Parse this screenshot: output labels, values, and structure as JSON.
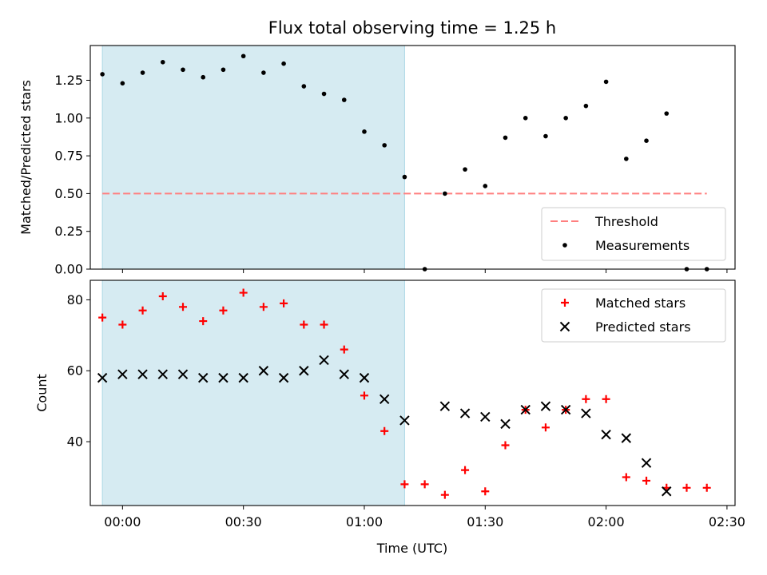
{
  "chart_data": {
    "type": "scatter",
    "title": "Flux total observing time = 1.25 h",
    "xlabel": "Time (UTC)",
    "x_unit": "time (UTC)",
    "xlim": [
      "23:52",
      "02:32"
    ],
    "xticks": [
      "00:00",
      "00:30",
      "01:00",
      "01:30",
      "02:00",
      "02:30"
    ],
    "shaded_span": [
      "23:55",
      "01:10"
    ],
    "colors": {
      "shade": "#add8e6",
      "threshold": "#ff7f7f",
      "measurements": "#000000",
      "matched": "#ff0000",
      "predicted": "#000000"
    },
    "panels": [
      {
        "ylabel": "Matched/Predicted stars",
        "ylim": [
          0,
          1.48
        ],
        "yticks": [
          "0.00",
          "0.25",
          "0.50",
          "0.75",
          "1.00",
          "1.25"
        ],
        "legend_position": "lower right",
        "series": [
          {
            "name": "Threshold",
            "style": "dashed-line",
            "points": [
              [
                "23:55",
                0.5
              ],
              [
                "02:25",
                0.5
              ]
            ]
          },
          {
            "name": "Measurements",
            "style": "dot",
            "points": [
              [
                "23:55",
                1.29
              ],
              [
                "00:00",
                1.23
              ],
              [
                "00:05",
                1.3
              ],
              [
                "00:10",
                1.37
              ],
              [
                "00:15",
                1.32
              ],
              [
                "00:20",
                1.27
              ],
              [
                "00:25",
                1.32
              ],
              [
                "00:30",
                1.41
              ],
              [
                "00:35",
                1.3
              ],
              [
                "00:40",
                1.36
              ],
              [
                "00:45",
                1.21
              ],
              [
                "00:50",
                1.16
              ],
              [
                "00:55",
                1.12
              ],
              [
                "01:00",
                0.91
              ],
              [
                "01:05",
                0.82
              ],
              [
                "01:10",
                0.61
              ],
              [
                "01:15",
                0.0
              ],
              [
                "01:20",
                0.5
              ],
              [
                "01:25",
                0.66
              ],
              [
                "01:30",
                0.55
              ],
              [
                "01:35",
                0.87
              ],
              [
                "01:40",
                1.0
              ],
              [
                "01:45",
                0.88
              ],
              [
                "01:50",
                1.0
              ],
              [
                "01:55",
                1.08
              ],
              [
                "02:00",
                1.24
              ],
              [
                "02:05",
                0.73
              ],
              [
                "02:10",
                0.85
              ],
              [
                "02:15",
                1.03
              ],
              [
                "02:20",
                0.0
              ],
              [
                "02:25",
                0.0
              ]
            ]
          }
        ]
      },
      {
        "ylabel": "Count",
        "ylim": [
          22,
          85.5
        ],
        "yticks": [
          "40",
          "60",
          "80"
        ],
        "legend_position": "upper right",
        "series": [
          {
            "name": "Matched stars",
            "style": "plus",
            "points": [
              [
                "23:55",
                75
              ],
              [
                "00:00",
                73
              ],
              [
                "00:05",
                77
              ],
              [
                "00:10",
                81
              ],
              [
                "00:15",
                78
              ],
              [
                "00:20",
                74
              ],
              [
                "00:25",
                77
              ],
              [
                "00:30",
                82
              ],
              [
                "00:35",
                78
              ],
              [
                "00:40",
                79
              ],
              [
                "00:45",
                73
              ],
              [
                "00:50",
                73
              ],
              [
                "00:55",
                66
              ],
              [
                "01:00",
                53
              ],
              [
                "01:05",
                43
              ],
              [
                "01:10",
                28
              ],
              [
                "01:15",
                28
              ],
              [
                "01:20",
                25
              ],
              [
                "01:25",
                32
              ],
              [
                "01:30",
                26
              ],
              [
                "01:35",
                39
              ],
              [
                "01:40",
                49
              ],
              [
                "01:45",
                44
              ],
              [
                "01:50",
                49
              ],
              [
                "01:55",
                52
              ],
              [
                "02:00",
                52
              ],
              [
                "02:05",
                30
              ],
              [
                "02:10",
                29
              ],
              [
                "02:15",
                27
              ],
              [
                "02:20",
                27
              ],
              [
                "02:25",
                27
              ]
            ]
          },
          {
            "name": "Predicted stars",
            "style": "x",
            "points": [
              [
                "23:55",
                58
              ],
              [
                "00:00",
                59
              ],
              [
                "00:05",
                59
              ],
              [
                "00:10",
                59
              ],
              [
                "00:15",
                59
              ],
              [
                "00:20",
                58
              ],
              [
                "00:25",
                58
              ],
              [
                "00:30",
                58
              ],
              [
                "00:35",
                60
              ],
              [
                "00:40",
                58
              ],
              [
                "00:45",
                60
              ],
              [
                "00:50",
                63
              ],
              [
                "00:55",
                59
              ],
              [
                "01:00",
                58
              ],
              [
                "01:05",
                52
              ],
              [
                "01:10",
                46
              ],
              [
                "01:20",
                50
              ],
              [
                "01:25",
                48
              ],
              [
                "01:30",
                47
              ],
              [
                "01:35",
                45
              ],
              [
                "01:40",
                49
              ],
              [
                "01:45",
                50
              ],
              [
                "01:50",
                49
              ],
              [
                "01:55",
                48
              ],
              [
                "02:00",
                42
              ],
              [
                "02:05",
                41
              ],
              [
                "02:10",
                34
              ],
              [
                "02:15",
                26
              ]
            ]
          }
        ]
      }
    ]
  }
}
